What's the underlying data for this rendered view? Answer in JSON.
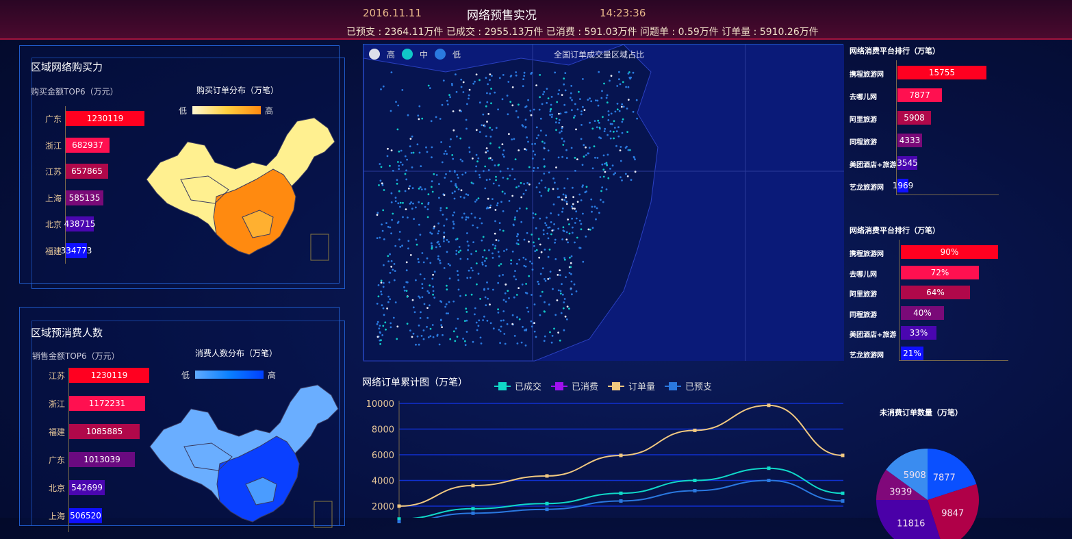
{
  "header": {
    "date": "2016.11.11",
    "title": "网络预售实况",
    "time": "14:23:36",
    "stats": "已预支 : 2364.11万件  已成交 : 2955.13万件  已消费 : 591.03万件  问题单 : 0.59万件  订单量 : 5910.26万件"
  },
  "panel1": {
    "title": "区域网络购买力",
    "subtitle": "购买金额TOP6（万元）",
    "map_title": "购买订单分布（万笔）",
    "legend_low": "低",
    "legend_high": "高",
    "bars": [
      {
        "label": "广东",
        "value": 1230119,
        "color": "#ff0020"
      },
      {
        "label": "浙江",
        "value": 682937,
        "color": "#ff1050"
      },
      {
        "label": "江苏",
        "value": 657865,
        "color": "#b0084a"
      },
      {
        "label": "上海",
        "value": 585135,
        "color": "#7a0a78"
      },
      {
        "label": "北京",
        "value": 438715,
        "color": "#4a06b0"
      },
      {
        "label": "福建",
        "value": 334773,
        "color": "#1010ff"
      }
    ]
  },
  "panel2": {
    "title": "区域预消费人数",
    "subtitle": "销售金额TOP6（万元）",
    "map_title": "消费人数分布（万笔）",
    "legend_low": "低",
    "legend_high": "高",
    "bars": [
      {
        "label": "江苏",
        "value": 1230119,
        "color": "#ff0020"
      },
      {
        "label": "浙江",
        "value": 1172231,
        "color": "#ff1050"
      },
      {
        "label": "福建",
        "value": 1085885,
        "color": "#b0084a"
      },
      {
        "label": "广东",
        "value": 1013039,
        "color": "#6a0a80"
      },
      {
        "label": "北京",
        "value": 542699,
        "color": "#4a06b0"
      },
      {
        "label": "上海",
        "value": 506520,
        "color": "#1010ff"
      }
    ]
  },
  "map": {
    "title": "全国订单成交量区域占比",
    "legend": [
      {
        "label": "高",
        "color": "#dde0ea"
      },
      {
        "label": "中",
        "color": "#10c8c8"
      },
      {
        "label": "低",
        "color": "#2a7ae0"
      }
    ]
  },
  "rank1": {
    "title": "网络消费平台排行（万笔）",
    "items": [
      {
        "label": "携程旅游网",
        "value": 15755,
        "color": "#ff0020"
      },
      {
        "label": "去哪儿网",
        "value": 7877,
        "color": "#ff1050"
      },
      {
        "label": "阿里旅游",
        "value": 5908,
        "color": "#b0084a"
      },
      {
        "label": "同程旅游",
        "value": 4333,
        "color": "#7a0a78"
      },
      {
        "label": "美团酒店+旅游",
        "value": 3545,
        "color": "#4a06b0"
      },
      {
        "label": "艺龙旅游网",
        "value": 1969,
        "color": "#1010ff"
      }
    ]
  },
  "rank2": {
    "title": "网络消费平台排行（万笔）",
    "items": [
      {
        "label": "携程旅游网",
        "value": "90%",
        "pct": 90,
        "color": "#ff0020"
      },
      {
        "label": "去哪儿网",
        "value": "72%",
        "pct": 72,
        "color": "#ff1050"
      },
      {
        "label": "阿里旅游",
        "value": "64%",
        "pct": 64,
        "color": "#b0084a"
      },
      {
        "label": "同程旅游",
        "value": "40%",
        "pct": 40,
        "color": "#7a0a78"
      },
      {
        "label": "美团酒店+旅游",
        "value": "33%",
        "pct": 33,
        "color": "#4a06b0"
      },
      {
        "label": "艺龙旅游网",
        "value": "21%",
        "pct": 21,
        "color": "#1010ff"
      }
    ]
  },
  "chart_data": [
    {
      "type": "line",
      "title": "网络订单累计图（万笔）",
      "yticks": [
        "2000",
        "4000",
        "6000",
        "8000",
        "10000"
      ],
      "ylim": [
        0,
        10000
      ],
      "grid": true,
      "legend_placement": "top",
      "series": [
        {
          "name": "已成交",
          "color": "#10d8c8",
          "values": [
            1000,
            1800,
            2200,
            3000,
            4000,
            4950,
            3000
          ]
        },
        {
          "name": "已消费",
          "color": "#a010f0",
          "values": []
        },
        {
          "name": "订单量",
          "color": "#f0c880",
          "values": [
            2000,
            3600,
            4350,
            5950,
            7900,
            9850,
            5950
          ]
        },
        {
          "name": "已预支",
          "color": "#2a78e0",
          "values": [
            800,
            1450,
            1750,
            2400,
            3200,
            4000,
            2400
          ]
        }
      ]
    },
    {
      "type": "pie",
      "title": "未消费订单数量（万笔）",
      "slices": [
        {
          "value": 7877,
          "color": "#0a50ff"
        },
        {
          "value": 9847,
          "color": "#b00048"
        },
        {
          "value": 11816,
          "color": "#4a00a8"
        },
        {
          "value": 3939,
          "color": "#80087a"
        },
        {
          "value": 5908,
          "color": "#3a8cf0"
        }
      ]
    }
  ]
}
